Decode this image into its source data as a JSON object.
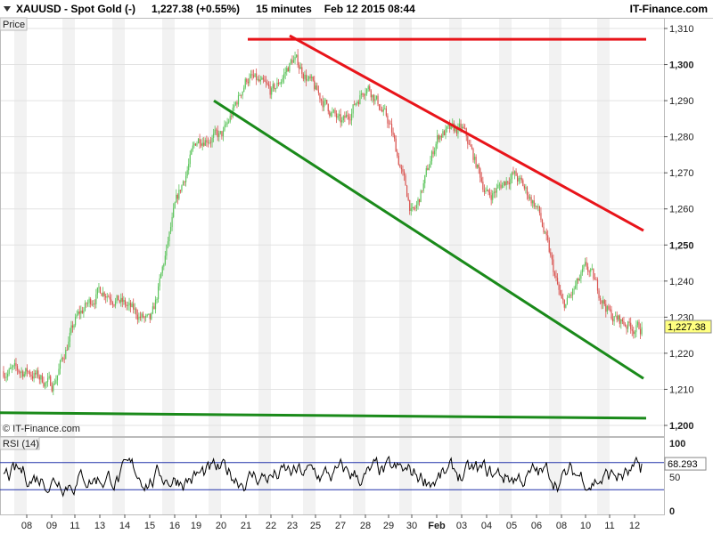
{
  "header": {
    "symbol": "XAUUSD - Spot Gold (-)",
    "price_change": "1,227.38 (+0.55%)",
    "interval": "15 minutes",
    "datetime": "Feb 12 2015 08:44",
    "brand": "IT-Finance.com"
  },
  "panels": {
    "price_label": "Price",
    "watermark": "© IT-Finance.com",
    "rsi_label": "RSI (14)"
  },
  "colors": {
    "bull": "#5cc45c",
    "bear": "#d9534f",
    "trend_upper": "#e8141a",
    "trend_lower": "#1a8a1a",
    "rsi_line": "#000000",
    "rsi_levels": "#2233aa",
    "price_box": "#ffff80"
  },
  "chart_data": [
    {
      "type": "candlestick",
      "title": "XAUUSD - Spot Gold (-)",
      "y_ticks": [
        "1,310",
        "1,300",
        "1,290",
        "1,280",
        "1,270",
        "1,260",
        "1,250",
        "1,240",
        "1,230",
        "1,220",
        "1,210",
        "1,200"
      ],
      "ylim": [
        1200,
        1310
      ],
      "x_ticks": [
        "08",
        "09",
        "11",
        "13",
        "14",
        "15",
        "16",
        "19",
        "20",
        "21",
        "22",
        "23",
        "25",
        "27",
        "28",
        "29",
        "30",
        "Feb",
        "03",
        "04",
        "05",
        "06",
        "08",
        "10",
        "11",
        "12"
      ],
      "last_price": 1227.38,
      "last_price_label": "1,227.38",
      "path_points": [
        {
          "x": "08",
          "y": 1215
        },
        {
          "x": "09",
          "y": 1211
        },
        {
          "x": "11",
          "y": 1230
        },
        {
          "x": "13",
          "y": 1238
        },
        {
          "x": "14",
          "y": 1233
        },
        {
          "x": "15",
          "y": 1228
        },
        {
          "x": "16",
          "y": 1262
        },
        {
          "x": "19",
          "y": 1280
        },
        {
          "x": "20",
          "y": 1280
        },
        {
          "x": "21",
          "y": 1297
        },
        {
          "x": "22",
          "y": 1292
        },
        {
          "x": "23",
          "y": 1302
        },
        {
          "x": "25",
          "y": 1292
        },
        {
          "x": "27",
          "y": 1283
        },
        {
          "x": "28",
          "y": 1295
        },
        {
          "x": "29",
          "y": 1283
        },
        {
          "x": "30",
          "y": 1257
        },
        {
          "x": "Feb",
          "y": 1281
        },
        {
          "x": "03",
          "y": 1282
        },
        {
          "x": "04",
          "y": 1263
        },
        {
          "x": "05",
          "y": 1270
        },
        {
          "x": "06",
          "y": 1260
        },
        {
          "x": "08",
          "y": 1232
        },
        {
          "x": "10",
          "y": 1244
        },
        {
          "x": "11",
          "y": 1230
        },
        {
          "x": "12",
          "y": 1227
        }
      ],
      "trendlines": [
        {
          "color": "trend_upper",
          "from": [
            278,
            1307
          ],
          "to": [
            725,
            1307
          ],
          "note": "horizontal resistance"
        },
        {
          "color": "trend_upper",
          "from": [
            325,
            1308
          ],
          "to": [
            722,
            1254
          ]
        },
        {
          "color": "trend_lower",
          "from": [
            240,
            1290
          ],
          "to": [
            722,
            1213
          ]
        },
        {
          "color": "trend_lower",
          "from": [
            0,
            1203.5
          ],
          "to": [
            725,
            1202
          ]
        }
      ]
    },
    {
      "type": "line",
      "title": "RSI (14)",
      "y_ticks": [
        "100",
        "50",
        "0"
      ],
      "ylim": [
        0,
        100
      ],
      "levels": [
        70,
        30
      ],
      "last_value": 68.293,
      "last_value_label": "68.293"
    }
  ]
}
